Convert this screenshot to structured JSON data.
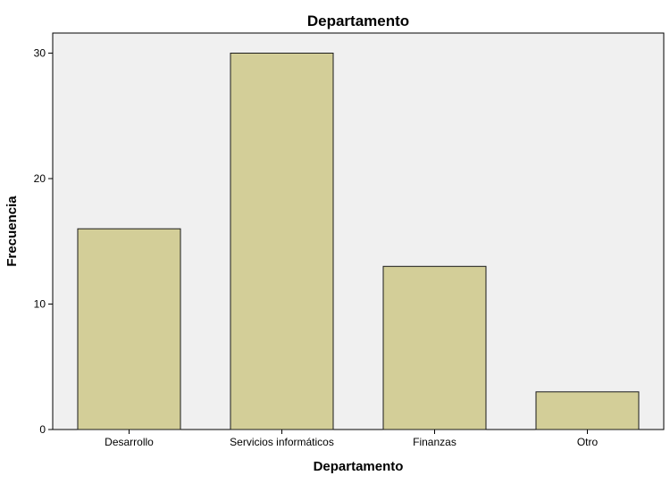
{
  "chart_data": {
    "type": "bar",
    "title": "Departamento",
    "xlabel": "Departamento",
    "ylabel": "Frecuencia",
    "categories": [
      "Desarrollo",
      "Servicios informáticos",
      "Finanzas",
      "Otro"
    ],
    "values": [
      16,
      30,
      13,
      3
    ],
    "ylim": [
      0,
      31.6
    ],
    "yticks": [
      0,
      10,
      20,
      30
    ],
    "grid": false,
    "legend": "none"
  },
  "colors": {
    "bar_fill": "#d3ce98",
    "bar_stroke": "#1a1a1a",
    "plot_background": "#f0f0f0",
    "page_background": "#ffffff"
  }
}
